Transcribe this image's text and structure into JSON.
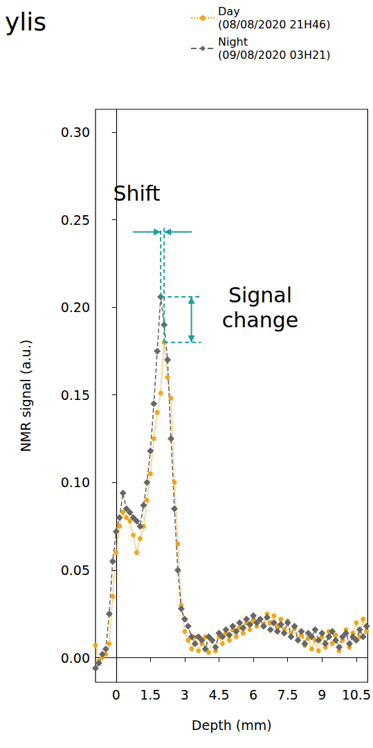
{
  "chart_data": {
    "type": "line",
    "title": "ylis",
    "x_label": "Depth (mm)",
    "y_label": "NMR signal (a.u.)",
    "xlim": [
      -0.9,
      11.0
    ],
    "xticks": [
      0,
      1.5,
      3,
      4.5,
      6,
      7.5,
      9,
      10.5
    ],
    "ylim": [
      -0.014,
      0.313
    ],
    "yticks": [
      {
        "value": 0,
        "label": "0.00"
      },
      {
        "value": 0.05,
        "label": "0.05"
      },
      {
        "value": 0.1,
        "label": "0.10"
      },
      {
        "value": 0.15,
        "label": "0.15"
      },
      {
        "value": 0.2,
        "label": "0.20"
      },
      {
        "value": 0.25,
        "label": "0.25"
      },
      {
        "value": 0.3,
        "label": "0.30"
      }
    ],
    "grid": false,
    "legend": "top",
    "x": [
      -0.9,
      -0.75,
      -0.6,
      -0.45,
      -0.3,
      -0.15,
      0,
      0.15,
      0.3,
      0.45,
      0.6,
      0.75,
      0.9,
      1.05,
      1.2,
      1.35,
      1.5,
      1.65,
      1.8,
      1.95,
      2.1,
      2.25,
      2.4,
      2.55,
      2.7,
      2.85,
      3.0,
      3.15,
      3.3,
      3.45,
      3.6,
      3.75,
      3.9,
      4.05,
      4.2,
      4.35,
      4.5,
      4.65,
      4.8,
      4.95,
      5.1,
      5.25,
      5.4,
      5.55,
      5.7,
      5.85,
      6.0,
      6.15,
      6.3,
      6.45,
      6.6,
      6.75,
      6.9,
      7.05,
      7.2,
      7.35,
      7.5,
      7.65,
      7.8,
      7.95,
      8.1,
      8.25,
      8.4,
      8.55,
      8.7,
      8.85,
      9.0,
      9.15,
      9.3,
      9.45,
      9.6,
      9.75,
      9.9,
      10.05,
      10.2,
      10.35,
      10.5,
      10.65,
      10.8,
      10.95
    ],
    "series": [
      {
        "name": "Day\n(08/08/2020 21H46)",
        "color": "#f2a516",
        "marker": "circle",
        "line_style": "dotted",
        "values": [
          0.007,
          -0.002,
          0.0,
          0.002,
          0.008,
          0.035,
          0.06,
          0.075,
          0.083,
          0.08,
          0.078,
          0.07,
          0.06,
          0.068,
          0.075,
          0.09,
          0.105,
          0.125,
          0.14,
          0.151,
          0.18,
          0.16,
          0.148,
          0.1,
          0.065,
          0.03,
          0.015,
          0.01,
          0.005,
          0.012,
          0.004,
          0.008,
          0.012,
          0.003,
          0.01,
          0.004,
          0.012,
          0.008,
          0.014,
          0.01,
          0.016,
          0.012,
          0.017,
          0.014,
          0.02,
          0.016,
          0.021,
          0.018,
          0.022,
          0.019,
          0.025,
          0.02,
          0.024,
          0.018,
          0.022,
          0.016,
          0.021,
          0.014,
          0.017,
          0.01,
          0.013,
          0.007,
          0.011,
          0.005,
          0.01,
          0.004,
          0.012,
          0.006,
          0.015,
          0.008,
          0.013,
          0.004,
          0.01,
          0.016,
          0.006,
          0.014,
          0.02,
          0.012,
          0.022,
          0.015
        ]
      },
      {
        "name": "Night\n(09/08/2020 03H21)",
        "color": "#666666",
        "marker": "diamond",
        "line_style": "dashed",
        "values": [
          -0.006,
          -0.003,
          0.002,
          0.005,
          0.025,
          0.055,
          0.072,
          0.08,
          0.094,
          0.085,
          0.083,
          0.08,
          0.078,
          0.075,
          0.087,
          0.1,
          0.118,
          0.145,
          0.175,
          0.206,
          0.19,
          0.17,
          0.125,
          0.085,
          0.05,
          0.028,
          0.022,
          0.018,
          0.012,
          0.008,
          0.012,
          0.01,
          0.005,
          0.012,
          0.01,
          0.006,
          0.014,
          0.012,
          0.016,
          0.013,
          0.018,
          0.015,
          0.02,
          0.017,
          0.022,
          0.019,
          0.024,
          0.02,
          0.022,
          0.018,
          0.023,
          0.016,
          0.02,
          0.015,
          0.019,
          0.014,
          0.02,
          0.012,
          0.018,
          0.01,
          0.015,
          0.008,
          0.014,
          0.012,
          0.016,
          0.01,
          0.014,
          0.008,
          0.012,
          0.015,
          0.01,
          0.006,
          0.012,
          0.014,
          0.008,
          0.012,
          0.01,
          0.016,
          0.012,
          0.018
        ]
      }
    ],
    "annotations": [
      {
        "text": "Shift",
        "x": 0.9,
        "y": 0.265
      },
      {
        "text": "Signal change",
        "x": 6.3,
        "y": 0.2
      }
    ]
  }
}
